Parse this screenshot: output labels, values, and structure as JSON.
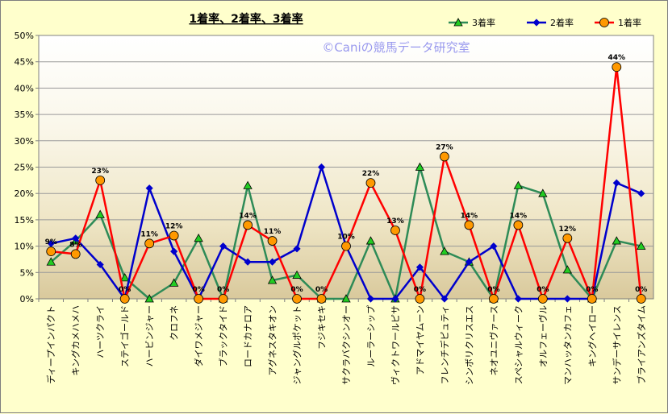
{
  "chart_data": {
    "type": "line",
    "title": "1着率、2着率、3着率",
    "watermark": "©Caniの競馬データ研究室",
    "xlabel": "",
    "ylabel": "",
    "ylim": [
      0,
      50
    ],
    "yticks": [
      "0%",
      "5%",
      "10%",
      "15%",
      "20%",
      "25%",
      "30%",
      "35%",
      "40%",
      "45%",
      "50%"
    ],
    "grid": true,
    "legend_position": "top-right",
    "categories": [
      "ディープインパクト",
      "キングカメハメハ",
      "ハーツクライ",
      "ステイゴールド",
      "ハービンジャー",
      "クロフネ",
      "ダイワメジャー",
      "ブラックタイド",
      "ロードカナロア",
      "アグネスタキオン",
      "ジャングルポケット",
      "フジキセキ",
      "サクラバクシンオー",
      "ルーラーシップ",
      "ヴィクトワールピサ",
      "アドマイヤムーン",
      "フレンチデピュティ",
      "シンボリクリスエス",
      "ネオユニヴァース",
      "スペシャルウィーク",
      "オルフェーヴル",
      "マンハッタンカフェ",
      "キングヘイロー",
      "サンデーサイレンス",
      "ブライアンズタイム"
    ],
    "series": [
      {
        "name": "3着率",
        "color": "#2e8b57",
        "marker": "triangle",
        "marker_color": "#22cc22",
        "values": [
          7,
          11,
          16,
          4,
          0,
          3,
          11.5,
          0,
          21.5,
          3.5,
          4.5,
          0,
          0,
          11,
          0,
          25,
          9,
          7,
          0,
          21.5,
          20,
          5.5,
          0,
          11,
          10
        ]
      },
      {
        "name": "2着率",
        "color": "#0000cc",
        "marker": "diamond",
        "marker_color": "#0000cc",
        "values": [
          10.5,
          11.5,
          6.5,
          0,
          21,
          9,
          0,
          10,
          7,
          7,
          9.5,
          25,
          10,
          0,
          0,
          6,
          0,
          7,
          10,
          0,
          0,
          0,
          0,
          22,
          20
        ]
      },
      {
        "name": "1着率",
        "color": "#ff0000",
        "marker": "circle",
        "marker_color": "#ff9900",
        "values": [
          9,
          8.5,
          22.5,
          0,
          10.5,
          12,
          0,
          0,
          14,
          11,
          0,
          0,
          10,
          22,
          13,
          0,
          27,
          14,
          0,
          14,
          0,
          11.5,
          0,
          44,
          0
        ],
        "data_labels": [
          "9%",
          "8%",
          "23%",
          "0%",
          "11%",
          "12%",
          "0%",
          "0%",
          "14%",
          "11%",
          "0%",
          "0%",
          "10%",
          "22%",
          "13%",
          "0%",
          "27%",
          "14%",
          "0%",
          "14%",
          "0%",
          "12%",
          "0%",
          "44%",
          "0%"
        ]
      }
    ]
  }
}
